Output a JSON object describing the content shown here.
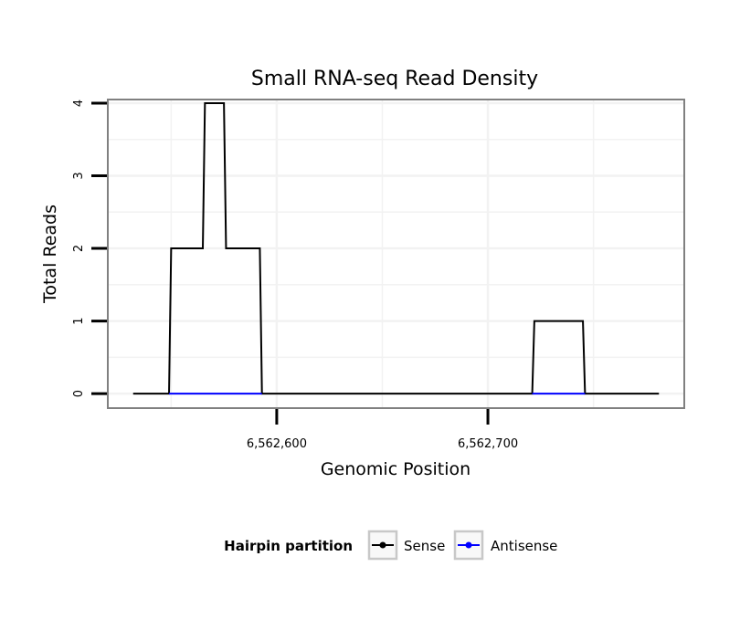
{
  "chart_data": {
    "type": "line",
    "title": "Small RNA-seq Read Density",
    "xlabel": "Genomic Position",
    "ylabel": "Total Reads",
    "xlim": [
      6562520,
      6562793
    ],
    "ylim": [
      -0.2,
      4.05
    ],
    "x_ticks": [
      6562600,
      6562700
    ],
    "x_tick_labels": [
      "6,562,600",
      "6,562,700"
    ],
    "y_ticks": [
      0,
      1,
      2,
      3,
      4
    ],
    "y_tick_labels": [
      "0",
      "1",
      "2",
      "3",
      "4"
    ],
    "grid": true,
    "legend": {
      "title": "Hairpin partition",
      "position": "bottom"
    },
    "series": [
      {
        "name": "Sense",
        "color": "#000000",
        "x": [
          6562532,
          6562549,
          6562550,
          6562565,
          6562566,
          6562575,
          6562576,
          6562592,
          6562593,
          6562721,
          6562722,
          6562745,
          6562746,
          6562781
        ],
        "y": [
          0,
          0,
          2,
          2,
          4,
          4,
          2,
          2,
          0,
          0,
          1,
          1,
          0,
          0
        ]
      },
      {
        "name": "Antisense",
        "color": "#0000ff",
        "x": [
          6562549,
          6562593,
          6562721,
          6562746
        ],
        "y": [
          0,
          0,
          0,
          0
        ],
        "segments": [
          [
            0,
            1
          ],
          [
            2,
            3
          ]
        ]
      }
    ]
  }
}
